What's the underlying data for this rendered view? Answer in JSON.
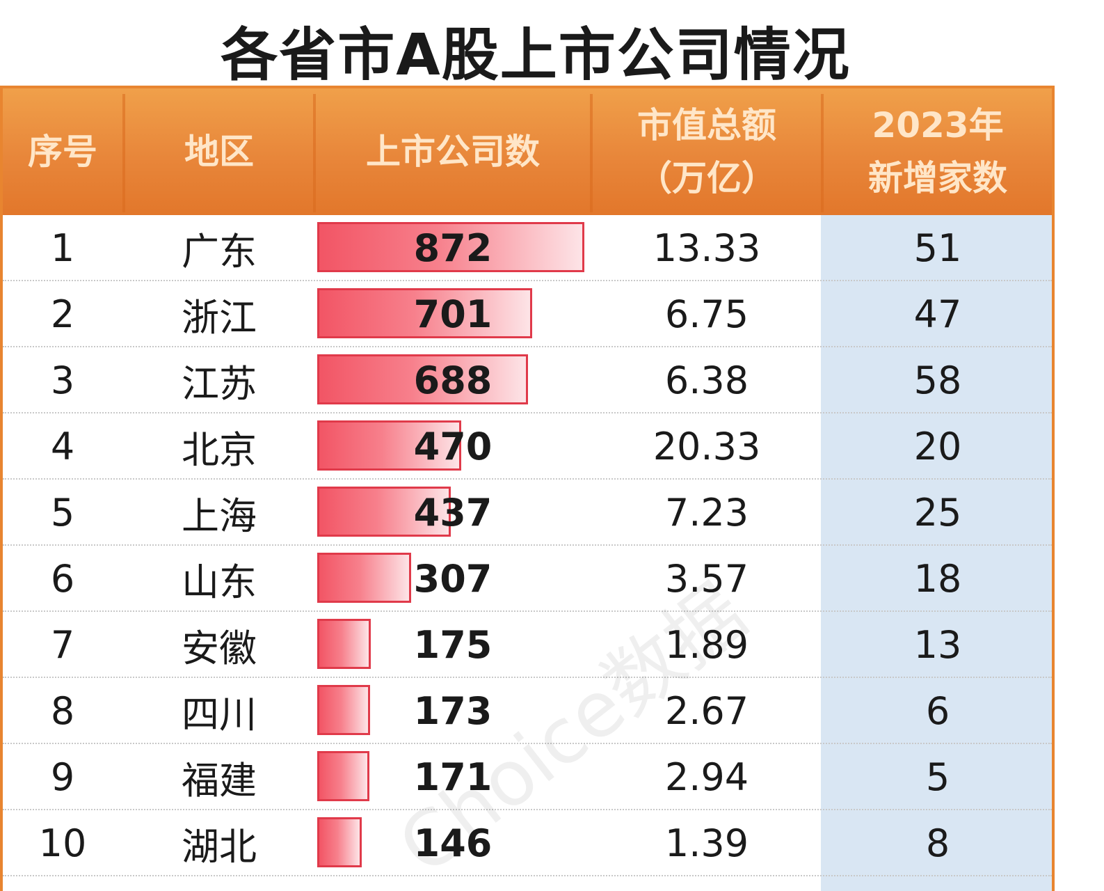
{
  "title": "各省市A股上市公司情况",
  "colors": {
    "header_bg": "#e8863a",
    "header_text": "#ffe6c8",
    "bar_fill": "#f25565",
    "bar_border": "#e03a4a",
    "new_column_bg": "#d9e6f3",
    "border": "#e88530"
  },
  "table": {
    "headers": {
      "rank": "序号",
      "region": "地区",
      "companies": "上市公司数",
      "market_cap_line1": "市值总额",
      "market_cap_line2": "（万亿）",
      "new_2023_line1": "2023年",
      "new_2023_line2": "新增家数"
    }
  },
  "chart_data": {
    "type": "table",
    "title": "各省市A股上市公司情况",
    "columns": [
      "序号",
      "地区",
      "上市公司数",
      "市值总额（万亿）",
      "2023年新增家数"
    ],
    "rows": [
      {
        "rank": "1",
        "region": "广东",
        "companies": 872,
        "market_cap": "13.33",
        "new_2023": "51"
      },
      {
        "rank": "2",
        "region": "浙江",
        "companies": 701,
        "market_cap": "6.75",
        "new_2023": "47"
      },
      {
        "rank": "3",
        "region": "江苏",
        "companies": 688,
        "market_cap": "6.38",
        "new_2023": "58"
      },
      {
        "rank": "4",
        "region": "北京",
        "companies": 470,
        "market_cap": "20.33",
        "new_2023": "20"
      },
      {
        "rank": "5",
        "region": "上海",
        "companies": 437,
        "market_cap": "7.23",
        "new_2023": "25"
      },
      {
        "rank": "6",
        "region": "山东",
        "companies": 307,
        "market_cap": "3.57",
        "new_2023": "18"
      },
      {
        "rank": "7",
        "region": "安徽",
        "companies": 175,
        "market_cap": "1.89",
        "new_2023": "13"
      },
      {
        "rank": "8",
        "region": "四川",
        "companies": 173,
        "market_cap": "2.67",
        "new_2023": "6"
      },
      {
        "rank": "9",
        "region": "福建",
        "companies": 171,
        "market_cap": "2.94",
        "new_2023": "5"
      },
      {
        "rank": "10",
        "region": "湖北",
        "companies": 146,
        "market_cap": "1.39",
        "new_2023": "8"
      }
    ],
    "bar_column": "上市公司数",
    "bar_max": 872
  },
  "watermark": "Choice数据"
}
